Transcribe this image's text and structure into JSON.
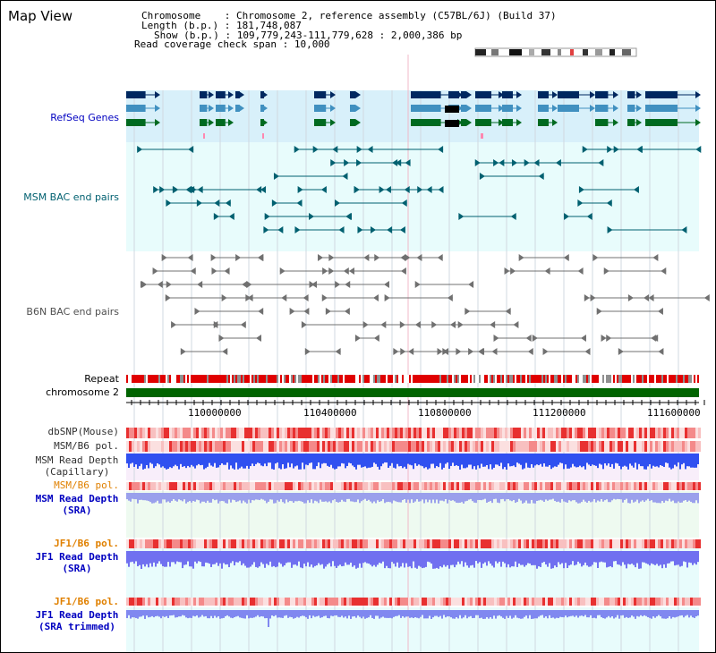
{
  "title": "Map View",
  "info": {
    "chromosome_key": "Chromosome",
    "chromosome_val": ": Chromosome 2, reference assembly (C57BL/6J) (Build 37)",
    "length_key": "Length (b.p.)",
    "length_val": ": 181,748,087",
    "show_key": "Show (b.p.)",
    "show_val": ": 109,779,243-111,779,628 : 2,000,386 bp",
    "coverage_key": "Read coverage check span",
    "coverage_val": ": 10,000"
  },
  "tracks": {
    "refseq": "RefSeq Genes",
    "msm_bac": "MSM BAC end pairs",
    "b6n_bac": "B6N BAC end pairs",
    "repeat": "Repeat",
    "chromosome": "chromosome 2",
    "dbsnp": "dbSNP(Mouse)",
    "msm_b6_pol_1": "MSM/B6 pol.",
    "msm_depth_cap_1": "MSM Read Depth",
    "msm_depth_cap_2": "(Capillary)",
    "msm_b6_pol_2": "MSM/B6 pol.",
    "msm_depth_sra_1": "MSM Read Depth",
    "msm_depth_sra_2": "(SRA)",
    "jf1_b6_pol_1": "JF1/B6 pol.",
    "jf1_depth_sra_1": "JF1 Read Depth",
    "jf1_depth_sra_2": "(SRA)",
    "jf1_b6_pol_2": "JF1/B6 pol.",
    "jf1_depth_trim_1": "JF1 Read Depth",
    "jf1_depth_trim_2": "(SRA trimmed)"
  },
  "ruler": {
    "labels": [
      "110000000",
      "110400000",
      "110800000",
      "111200000",
      "111600000"
    ],
    "start": 109779243,
    "end": 111779628
  },
  "colors": {
    "refseq_label": "#0000c0",
    "msm_label": "#006070",
    "b6n_label": "#505050",
    "pol_label": "#e08000",
    "depth_label": "#0000c0",
    "chromosome_green": "#006400",
    "repeat_red": "#e00000",
    "refseq_bg": "#d8f0fa",
    "track_bg": "#e8fcfc"
  }
}
